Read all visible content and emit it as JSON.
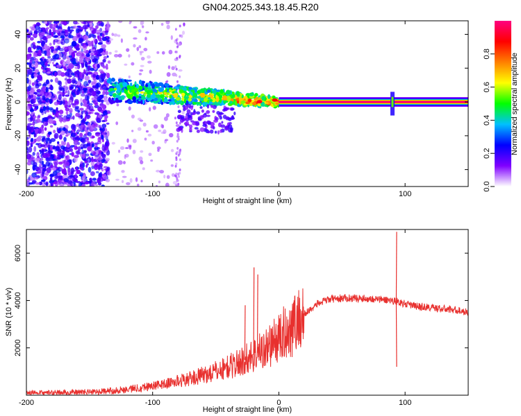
{
  "title": "GN04.2025.343.18.45.R20",
  "chart_data": [
    {
      "type": "heatmap",
      "xlabel": "Height of straight line (km)",
      "ylabel": "Frequency (Hz)",
      "xlim": [
        -200,
        150
      ],
      "ylim": [
        -50,
        48
      ],
      "xticks": [
        -200,
        -100,
        0,
        100
      ],
      "yticks": [
        -40,
        -20,
        0,
        20,
        40
      ],
      "colorbar": {
        "label": "Normalized spectral amplitude",
        "range": [
          0,
          1
        ],
        "ticks": [
          "0.0",
          "0.2",
          "0.4",
          "0.6",
          "0.8"
        ],
        "tick_values": [
          0,
          0.2,
          0.4,
          0.6,
          0.8
        ],
        "stops": [
          "#ffffff",
          "#8000ff",
          "#0000ff",
          "#00c0ff",
          "#00ff00",
          "#ffff00",
          "#ff8000",
          "#ff0000",
          "#ff0080"
        ]
      },
      "features": [
        {
          "name": "scattered noise",
          "x_range": [
            -200,
            -135
          ],
          "f_range": [
            -50,
            48
          ],
          "amplitude": 0.15
        },
        {
          "name": "signal band",
          "x_range": [
            -135,
            0
          ],
          "f_center_start": 7,
          "f_center_end": 0,
          "amplitude": 0.5
        },
        {
          "name": "steady carrier",
          "x_range": [
            0,
            150
          ],
          "f": 0,
          "amplitude": 1.0
        },
        {
          "name": "spike",
          "x": 90,
          "f_range": [
            -8,
            6
          ],
          "amplitude": 0.4
        }
      ]
    },
    {
      "type": "line",
      "xlabel": "Height of straight line (km)",
      "ylabel": "SNR (10 * v/v)",
      "xlim": [
        -200,
        150
      ],
      "ylim": [
        0,
        7000
      ],
      "xticks": [
        -200,
        -100,
        0,
        100
      ],
      "yticks": [
        2000,
        4000,
        6000
      ],
      "series": [
        {
          "name": "SNR",
          "color": "#e8302e",
          "x": [
            -200,
            -180,
            -160,
            -140,
            -120,
            -110,
            -100,
            -90,
            -80,
            -70,
            -60,
            -50,
            -40,
            -30,
            -20,
            -10,
            0,
            10,
            20,
            30,
            40,
            50,
            60,
            70,
            80,
            90,
            95,
            100,
            110,
            120,
            130,
            140,
            150
          ],
          "y": [
            80,
            100,
            120,
            150,
            250,
            320,
            400,
            480,
            600,
            700,
            850,
            1000,
            1200,
            1400,
            1700,
            2000,
            2400,
            2900,
            3400,
            3850,
            4050,
            4100,
            4100,
            4080,
            4050,
            4000,
            3950,
            3850,
            3750,
            3700,
            3650,
            3600,
            3500
          ],
          "spikes": [
            {
              "x": -20,
              "y": 5400
            },
            {
              "x": -17,
              "y": 5100
            },
            {
              "x": -27,
              "y": 3800
            },
            {
              "x": 93,
              "y": 6900
            },
            {
              "x": 93,
              "y": 1200
            }
          ]
        }
      ]
    }
  ]
}
